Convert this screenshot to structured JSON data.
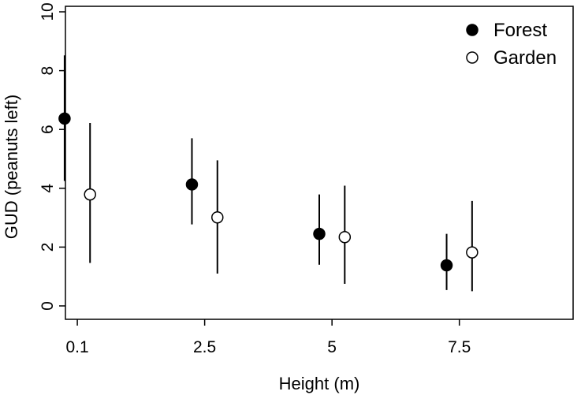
{
  "chart_data": {
    "type": "scatter",
    "title": "",
    "xlabel": "Height (m)",
    "ylabel": "GUD (peanuts left)",
    "categories": [
      "0.1",
      "2.5",
      "5",
      "7.5"
    ],
    "ylim": [
      0,
      10
    ],
    "yticks": [
      "0",
      "2",
      "4",
      "6",
      "8",
      "10"
    ],
    "grid": false,
    "legend": "top-right",
    "series": [
      {
        "name": "Forest",
        "marker": "filled-circle",
        "color": "#000000",
        "values": [
          6.37,
          4.13,
          2.45,
          1.38
        ],
        "lower": [
          4.25,
          2.77,
          1.4,
          0.54
        ],
        "upper": [
          8.52,
          5.7,
          3.79,
          2.45
        ]
      },
      {
        "name": "Garden",
        "marker": "open-circle",
        "color": "#ffffff",
        "values": [
          3.79,
          3.01,
          2.34,
          1.82
        ],
        "lower": [
          1.46,
          1.1,
          0.75,
          0.5
        ],
        "upper": [
          6.22,
          4.95,
          4.09,
          3.57
        ]
      }
    ]
  }
}
